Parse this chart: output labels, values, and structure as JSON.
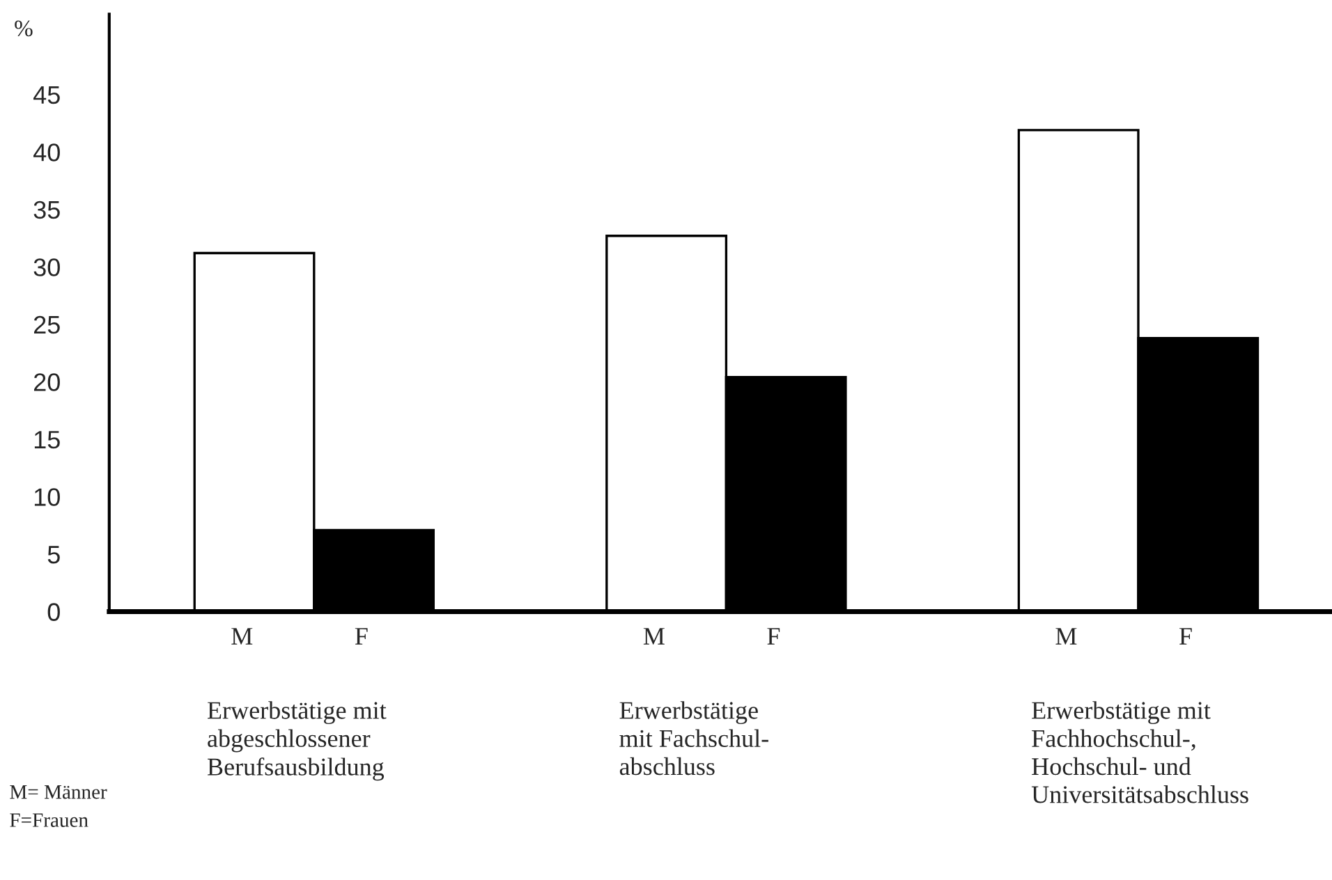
{
  "chart_data": {
    "type": "bar",
    "ylabel": "%",
    "categories": [
      "Erwerbstätige mit\nabgeschlossener\nBerufsausbildung",
      "Erwerbstätige\nmit Fachschul-\nabschluss",
      "Erwerbstätige mit\nFachhochschul-,\nHochschul- und\nUniversitätsabschluss"
    ],
    "series": [
      {
        "name": "M",
        "color": "#ffffff",
        "values": [
          31.2,
          32.7,
          41.9
        ]
      },
      {
        "name": "F",
        "color": "#000000",
        "values": [
          7.1,
          20.4,
          23.8
        ]
      }
    ],
    "ylim": [
      0,
      52
    ],
    "yticks": [
      0,
      5,
      10,
      15,
      20,
      25,
      30,
      35,
      40,
      45
    ],
    "grid": false,
    "legend": false,
    "annotations": [
      "M= Männer",
      "F=Frauen"
    ]
  }
}
